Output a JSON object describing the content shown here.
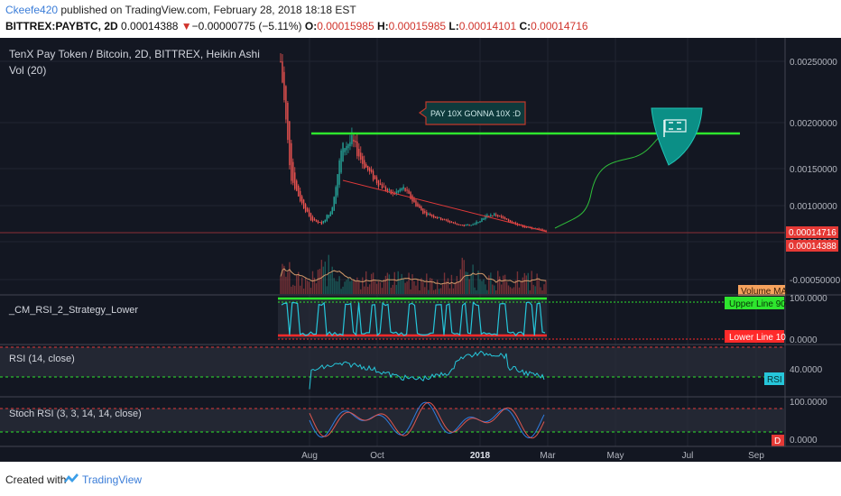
{
  "header": {
    "user": "Ckeefe420",
    "published": " published on TradingView.com, February 28, 2018 18:18 EST",
    "symbol": "BITTREX:PAYBTC, 2D",
    "last": "0.00014388",
    "change_arrow": "▼",
    "change": "−0.00000775 (−5.11%)",
    "o_label": "O:",
    "o_val": "0.00015985",
    "h_label": "H:",
    "h_val": "0.00015985",
    "l_label": "L:",
    "l_val": "0.00014101",
    "c_label": "C:",
    "c_val": "0.00014716"
  },
  "main": {
    "title": "TenX Pay Token / Bitcoin, 2D, BITTREX, Heikin Ashi",
    "vol_label": "Vol (20)",
    "annotation": "PAY 10X GONNA 10X :D",
    "price_axis": [
      "0.00250000",
      "0.00200000",
      "0.00150000",
      "0.00100000",
      "0.00050000",
      "-0.00050000"
    ],
    "price_tag_1": "0.00014716",
    "price_tag_2": "0.00014388",
    "volume_ma_tag": "Volume MA"
  },
  "pane_cm": {
    "title": "_CM_RSI_2_Strategy_Lower",
    "axis": [
      "100.0000",
      "0.0000"
    ],
    "upper_tag": "Upper Line 90",
    "lower_tag": "Lower Line 10"
  },
  "pane_rsi": {
    "title": "RSI (14, close)",
    "axis": [
      "40.0000"
    ],
    "tag": "RSI"
  },
  "pane_stoch": {
    "title": "Stoch RSI (3, 3, 14, 14, close)",
    "axis": [
      "100.0000",
      "0.0000"
    ],
    "tag": "D"
  },
  "x_axis": [
    "Aug",
    "Oct",
    "2018",
    "Mar",
    "May",
    "Jul",
    "Sep"
  ],
  "footer": {
    "created": "Created with",
    "brand": "TradingView"
  },
  "colors": {
    "background": "#131722",
    "up": "#26a69a",
    "down": "#ef5350",
    "target_line": "#2ee62e",
    "rsi": "#26c6da"
  },
  "chart_data": {
    "type": "candlestick",
    "title": "TenX Pay Token / Bitcoin, 2D, BITTREX, Heikin Ashi",
    "price_path": [
      0.0025,
      0.0009,
      0.00055,
      0.0003,
      0.00025,
      0.00045,
      0.0013,
      0.0014,
      0.0011,
      0.0009,
      0.00075,
      0.00065,
      0.00075,
      0.00055,
      0.0004,
      0.00035,
      0.0003,
      0.00025,
      0.00022,
      0.00025,
      0.00035,
      0.00038,
      0.0003,
      0.00025,
      0.0002,
      0.00018,
      0.000147
    ],
    "target_line": 0.0015,
    "last_close": 0.00014716,
    "ylim": [
      -0.0006,
      0.0029
    ],
    "x_ticks": [
      "Aug",
      "Oct",
      "2018",
      "Mar",
      "May",
      "Jul",
      "Sep"
    ]
  }
}
